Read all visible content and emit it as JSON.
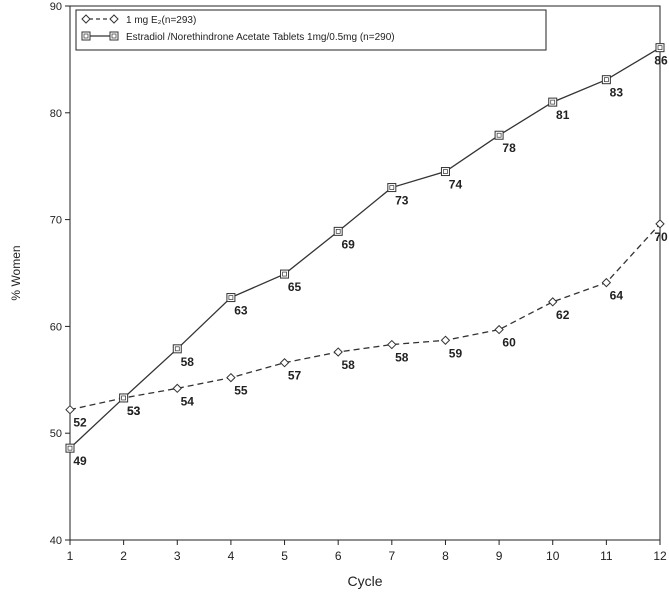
{
  "chart_data": {
    "type": "line",
    "xlabel": "Cycle",
    "ylabel": "% Women",
    "x": [
      1,
      2,
      3,
      4,
      5,
      6,
      7,
      8,
      9,
      10,
      11,
      12
    ],
    "xlim": [
      1,
      12
    ],
    "ylim": [
      40,
      90
    ],
    "yticks": [
      40,
      50,
      60,
      70,
      80,
      90
    ],
    "grid": false,
    "legend_position": "top-left",
    "series": [
      {
        "name": "1 mg E₂(n=293)",
        "style": "dashed",
        "marker": "diamond",
        "color": "#333333",
        "values": [
          52.2,
          53.3,
          54.2,
          55.2,
          56.6,
          57.6,
          58.3,
          58.7,
          59.7,
          62.3,
          64.1,
          69.6
        ],
        "labels": [
          "52",
          "53",
          "54",
          "55",
          "57",
          "58",
          "58",
          "59",
          "60",
          "62",
          "64",
          "70"
        ]
      },
      {
        "name": "Estradiol /Norethindrone Acetate Tablets 1mg/0.5mg (n=290)",
        "style": "solid",
        "marker": "square",
        "color": "#333333",
        "values": [
          48.6,
          53.3,
          57.9,
          62.7,
          64.9,
          68.9,
          73.0,
          74.5,
          77.9,
          81.0,
          83.1,
          86.1
        ],
        "labels": [
          "49",
          "53",
          "58",
          "63",
          "65",
          "69",
          "73",
          "74",
          "78",
          "81",
          "83",
          "86"
        ]
      }
    ]
  }
}
